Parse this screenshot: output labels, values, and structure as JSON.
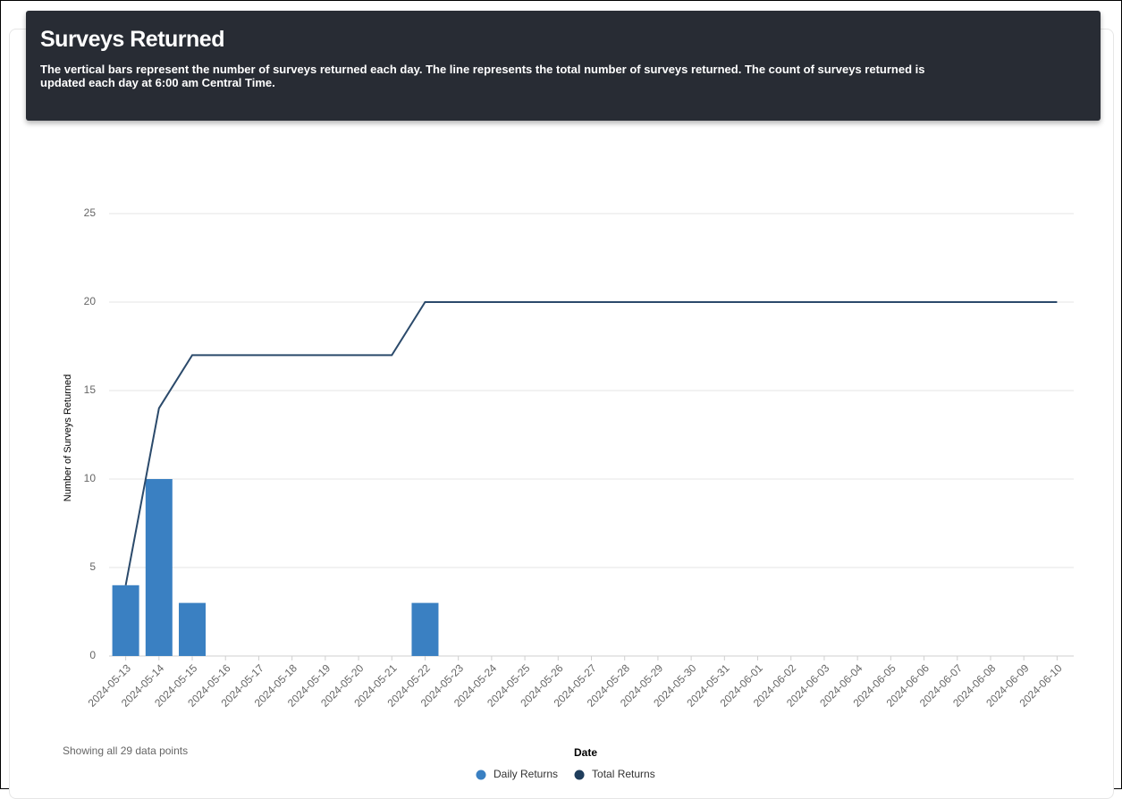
{
  "chart_data": {
    "type": "bar",
    "title": "Surveys Returned",
    "subtitle": "The vertical bars represent the number of surveys returned each day. The line represents the total number of surveys returned. The count of surveys returned is updated each day at 6:00 am Central Time.",
    "x_label": "Date",
    "y_label": "Number of Surveys Returned",
    "note": "Showing all 29 data points",
    "categories": [
      "2024-05-13",
      "2024-05-14",
      "2024-05-15",
      "2024-05-16",
      "2024-05-17",
      "2024-05-18",
      "2024-05-19",
      "2024-05-20",
      "2024-05-21",
      "2024-05-22",
      "2024-05-23",
      "2024-05-24",
      "2024-05-25",
      "2024-05-26",
      "2024-05-27",
      "2024-05-28",
      "2024-05-29",
      "2024-05-30",
      "2024-05-31",
      "2024-06-01",
      "2024-06-02",
      "2024-06-03",
      "2024-06-04",
      "2024-06-05",
      "2024-06-06",
      "2024-06-07",
      "2024-06-08",
      "2024-06-09",
      "2024-06-10"
    ],
    "series": [
      {
        "name": "Daily Returns",
        "type": "bar",
        "color": "#3a80c2",
        "legend_color": "#3a80c2",
        "values": [
          4,
          10,
          3,
          0,
          0,
          0,
          0,
          0,
          0,
          3,
          0,
          0,
          0,
          0,
          0,
          0,
          0,
          0,
          0,
          0,
          0,
          0,
          0,
          0,
          0,
          0,
          0,
          0,
          0
        ]
      },
      {
        "name": "Total Returns",
        "type": "line",
        "color": "#2b4a6b",
        "legend_color": "#1f3d5c",
        "values": [
          4,
          14,
          17,
          17,
          17,
          17,
          17,
          17,
          17,
          20,
          20,
          20,
          20,
          20,
          20,
          20,
          20,
          20,
          20,
          20,
          20,
          20,
          20,
          20,
          20,
          20,
          20,
          20,
          20
        ]
      }
    ],
    "ylim": [
      0,
      25
    ],
    "yticks": [
      0,
      5,
      10,
      15,
      20,
      25
    ],
    "grid": true
  }
}
